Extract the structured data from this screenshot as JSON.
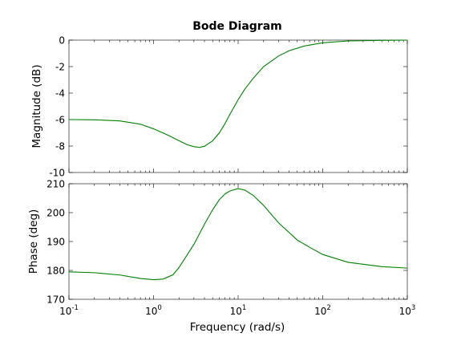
{
  "chart_data": {
    "type": "line",
    "title": "Bode Diagram",
    "xlabel": "Frequency  (rad/s)",
    "xscale": "log",
    "xlim": [
      0.1,
      1000
    ],
    "x_tick_base": "10",
    "x_tick_exponents": [
      "-1",
      "0",
      "1",
      "2",
      "3"
    ],
    "line_color": "#008000",
    "grid": false,
    "panels": [
      {
        "name": "magnitude",
        "ylabel": "Magnitude (dB)",
        "ylim": [
          -10,
          0
        ],
        "yticks": [
          "0",
          "-2",
          "-4",
          "-6",
          "-8",
          "-10"
        ],
        "x": [
          0.1,
          0.2,
          0.4,
          0.7,
          1.0,
          1.5,
          2.0,
          2.5,
          3.0,
          3.5,
          4.0,
          5.0,
          6.0,
          7.0,
          8.0,
          10.0,
          12.0,
          15.0,
          20.0,
          30.0,
          40.0,
          60.0,
          100.0,
          200.0,
          500.0,
          1000.0
        ],
        "y": [
          -6.0,
          -6.02,
          -6.1,
          -6.35,
          -6.7,
          -7.2,
          -7.6,
          -7.9,
          -8.05,
          -8.1,
          -8.02,
          -7.6,
          -7.0,
          -6.3,
          -5.6,
          -4.5,
          -3.7,
          -2.9,
          -2.0,
          -1.2,
          -0.8,
          -0.45,
          -0.2,
          -0.06,
          -0.02,
          0.0
        ]
      },
      {
        "name": "phase",
        "ylabel": "Phase (deg)",
        "ylim": [
          170,
          210
        ],
        "yticks": [
          "210",
          "200",
          "190",
          "180",
          "170"
        ],
        "x": [
          0.1,
          0.2,
          0.4,
          0.7,
          1.0,
          1.3,
          1.7,
          2.0,
          3.0,
          4.0,
          5.0,
          6.0,
          7.0,
          8.0,
          10.0,
          12.0,
          15.0,
          20.0,
          30.0,
          50.0,
          70.0,
          100.0,
          200.0,
          500.0,
          1000.0
        ],
        "y": [
          179.5,
          179.2,
          178.4,
          177.2,
          176.8,
          177.0,
          178.5,
          181.0,
          189.0,
          196.0,
          201.0,
          204.5,
          206.5,
          207.5,
          208.3,
          207.8,
          206.0,
          202.5,
          196.5,
          190.5,
          188.0,
          185.5,
          182.8,
          181.3,
          180.8
        ]
      }
    ]
  }
}
